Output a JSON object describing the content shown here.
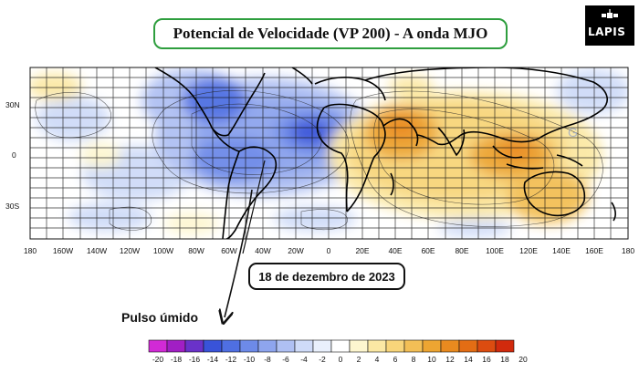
{
  "title": "Potencial de Velocidade (VP 200) - A onda MJO",
  "logo": {
    "text": "LAPIS"
  },
  "date_label": "18 de dezembro de 2023",
  "pulse_label": "Pulso úmido",
  "map": {
    "lon_labels": [
      "180",
      "160W",
      "140W",
      "120W",
      "100W",
      "80W",
      "60W",
      "40W",
      "20W",
      "0",
      "20E",
      "40E",
      "60E",
      "80E",
      "100E",
      "120E",
      "140E",
      "160E",
      "180"
    ],
    "lat_labels": [
      "30N",
      "0",
      "30S"
    ],
    "watermark": "G"
  },
  "colorbar": {
    "labels": [
      "-20",
      "-18",
      "-16",
      "-14",
      "-12",
      "-10",
      "-8",
      "-6",
      "-4",
      "-2",
      "0",
      "2",
      "4",
      "6",
      "8",
      "10",
      "12",
      "14",
      "16",
      "18",
      "20"
    ],
    "colors": [
      "#d12ad6",
      "#a11fc4",
      "#6a32c9",
      "#3953d9",
      "#4f6fe2",
      "#6d8ae8",
      "#8ea5ee",
      "#afc0f3",
      "#cfdbf8",
      "#e9f0fc",
      "#ffffff",
      "#fdf6cf",
      "#fbe8a4",
      "#f8d57a",
      "#f3bf56",
      "#eda532",
      "#e98a1f",
      "#e36d14",
      "#dc4c10",
      "#d12a0d"
    ]
  }
}
